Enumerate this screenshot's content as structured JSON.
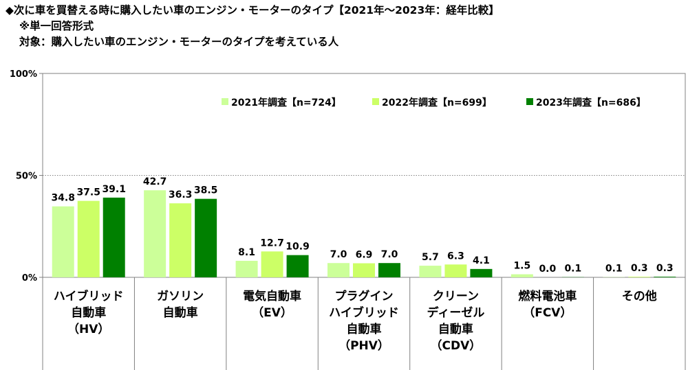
{
  "header": {
    "title": "◆次に車を買替える時に購入したい車のエンジン・モーターのタイプ【2021年～2023年：経年比較】",
    "format_note": "※単一回答形式",
    "target_note": "対象：購入したい車のエンジン・モーターのタイプを考えている人"
  },
  "chart_data": {
    "type": "bar",
    "yticks": [
      "100%",
      "50%",
      "0%"
    ],
    "ylim": [
      0,
      100
    ],
    "grid": "dotted line at 50%",
    "legend_position": "top-right",
    "categories": [
      [
        "ハイブリッド",
        "自動車",
        "（HV）"
      ],
      [
        "ガソリン",
        "自動車"
      ],
      [
        "電気自動車",
        "（EV）"
      ],
      [
        "プラグイン",
        "ハイブリッド",
        "自動車",
        "（PHV）"
      ],
      [
        "クリーン",
        "ディーゼル",
        "自動車",
        "（CDV）"
      ],
      [
        "燃料電池車",
        "（FCV）"
      ],
      [
        "その他"
      ]
    ],
    "series": [
      {
        "name": "2021年調査【n=724】",
        "color": "#ccff99",
        "values": [
          34.8,
          42.7,
          8.1,
          7.0,
          5.7,
          1.5,
          0.1
        ]
      },
      {
        "name": "2022年調査【n=699】",
        "color": "#ccff66",
        "values": [
          37.5,
          36.3,
          12.7,
          6.9,
          6.3,
          0.0,
          0.3
        ]
      },
      {
        "name": "2023年調査【n=686】",
        "color": "#008000",
        "values": [
          39.1,
          38.5,
          10.9,
          7.0,
          4.1,
          0.1,
          0.3
        ]
      }
    ]
  }
}
